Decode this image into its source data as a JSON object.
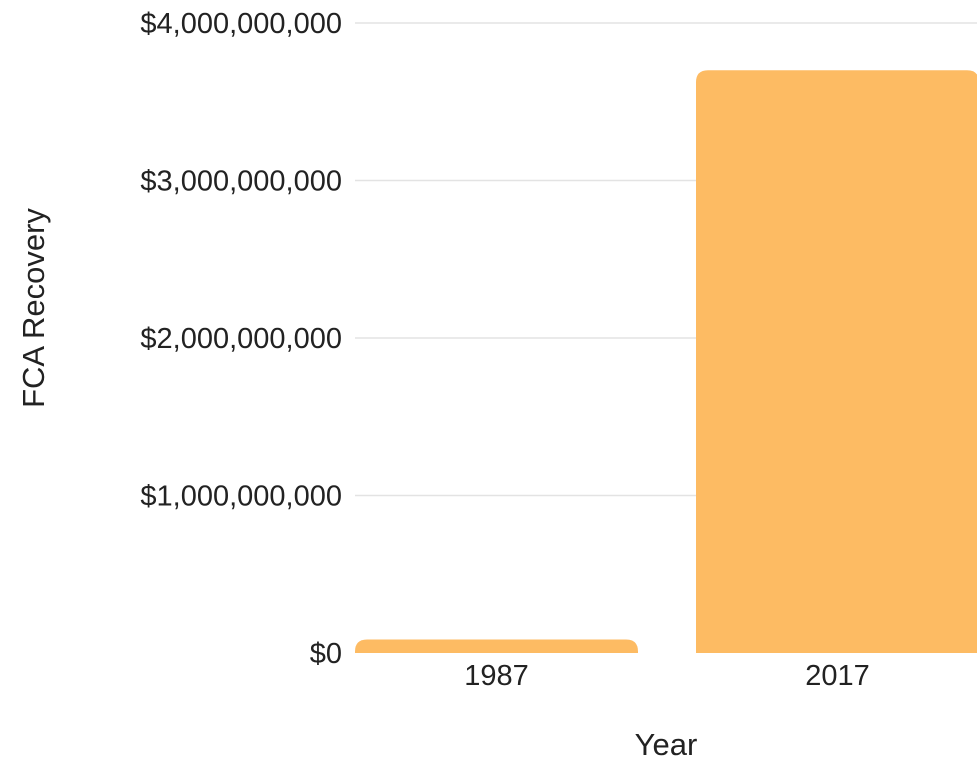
{
  "chart_data": {
    "type": "bar",
    "title": "",
    "xlabel": "Year",
    "ylabel": "FCA Recovery",
    "categories": [
      "1987",
      "2017"
    ],
    "values": [
      86000000,
      3700000000
    ],
    "ylim": [
      0,
      4000000000
    ],
    "yticks": [
      {
        "value": 0,
        "label": "$0"
      },
      {
        "value": 1000000000,
        "label": "$1,000,000,000"
      },
      {
        "value": 2000000000,
        "label": "$2,000,000,000"
      },
      {
        "value": 3000000000,
        "label": "$3,000,000,000"
      },
      {
        "value": 4000000000,
        "label": "$4,000,000,000"
      }
    ],
    "grid": true,
    "legend": "none",
    "bar_color": "#fdbb63",
    "gridline_color": "#e3e3e3",
    "text_color": "#222222"
  }
}
